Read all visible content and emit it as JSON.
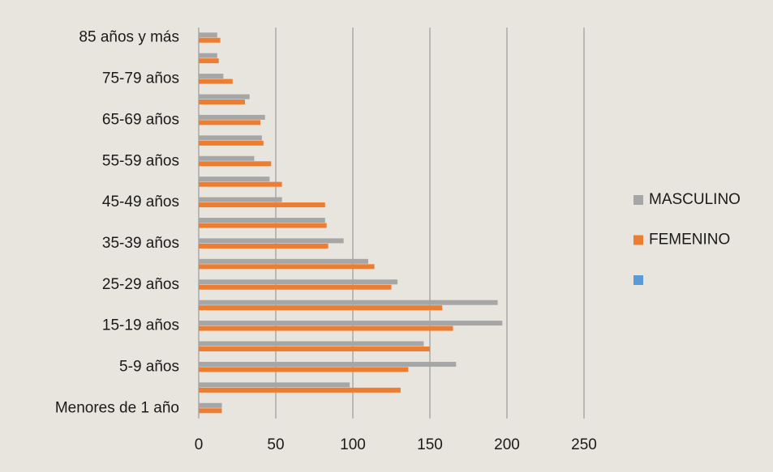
{
  "chart_data": {
    "type": "hbar",
    "categories": [
      "Menores de 1 año",
      null,
      "5-9 años",
      null,
      "15-19 años",
      null,
      "25-29 años",
      null,
      "35-39 años",
      null,
      "45-49 años",
      null,
      "55-59 años",
      null,
      "65-69 años",
      null,
      "75-79 años",
      null,
      "85 años y más"
    ],
    "series": [
      {
        "name": "MASCULINO",
        "color": "#a6a6a6",
        "values": [
          15,
          98,
          167,
          146,
          197,
          194,
          129,
          110,
          94,
          82,
          54,
          46,
          36,
          41,
          43,
          33,
          16,
          12,
          12
        ]
      },
      {
        "name": "FEMENINO",
        "color": "#ed7d31",
        "values": [
          15,
          131,
          136,
          150,
          165,
          158,
          125,
          114,
          84,
          83,
          82,
          54,
          47,
          42,
          40,
          30,
          22,
          13,
          14
        ]
      },
      {
        "color": "#5b9bd5",
        "values": [
          null,
          null,
          null,
          null,
          null,
          null,
          null,
          null,
          null,
          null,
          null,
          null,
          null,
          null,
          null,
          null,
          null,
          null,
          null
        ]
      }
    ],
    "xlim": [
      0,
      250
    ],
    "xticks": [
      0,
      50,
      100,
      150,
      200,
      250
    ],
    "grid": true,
    "legend": "right"
  }
}
